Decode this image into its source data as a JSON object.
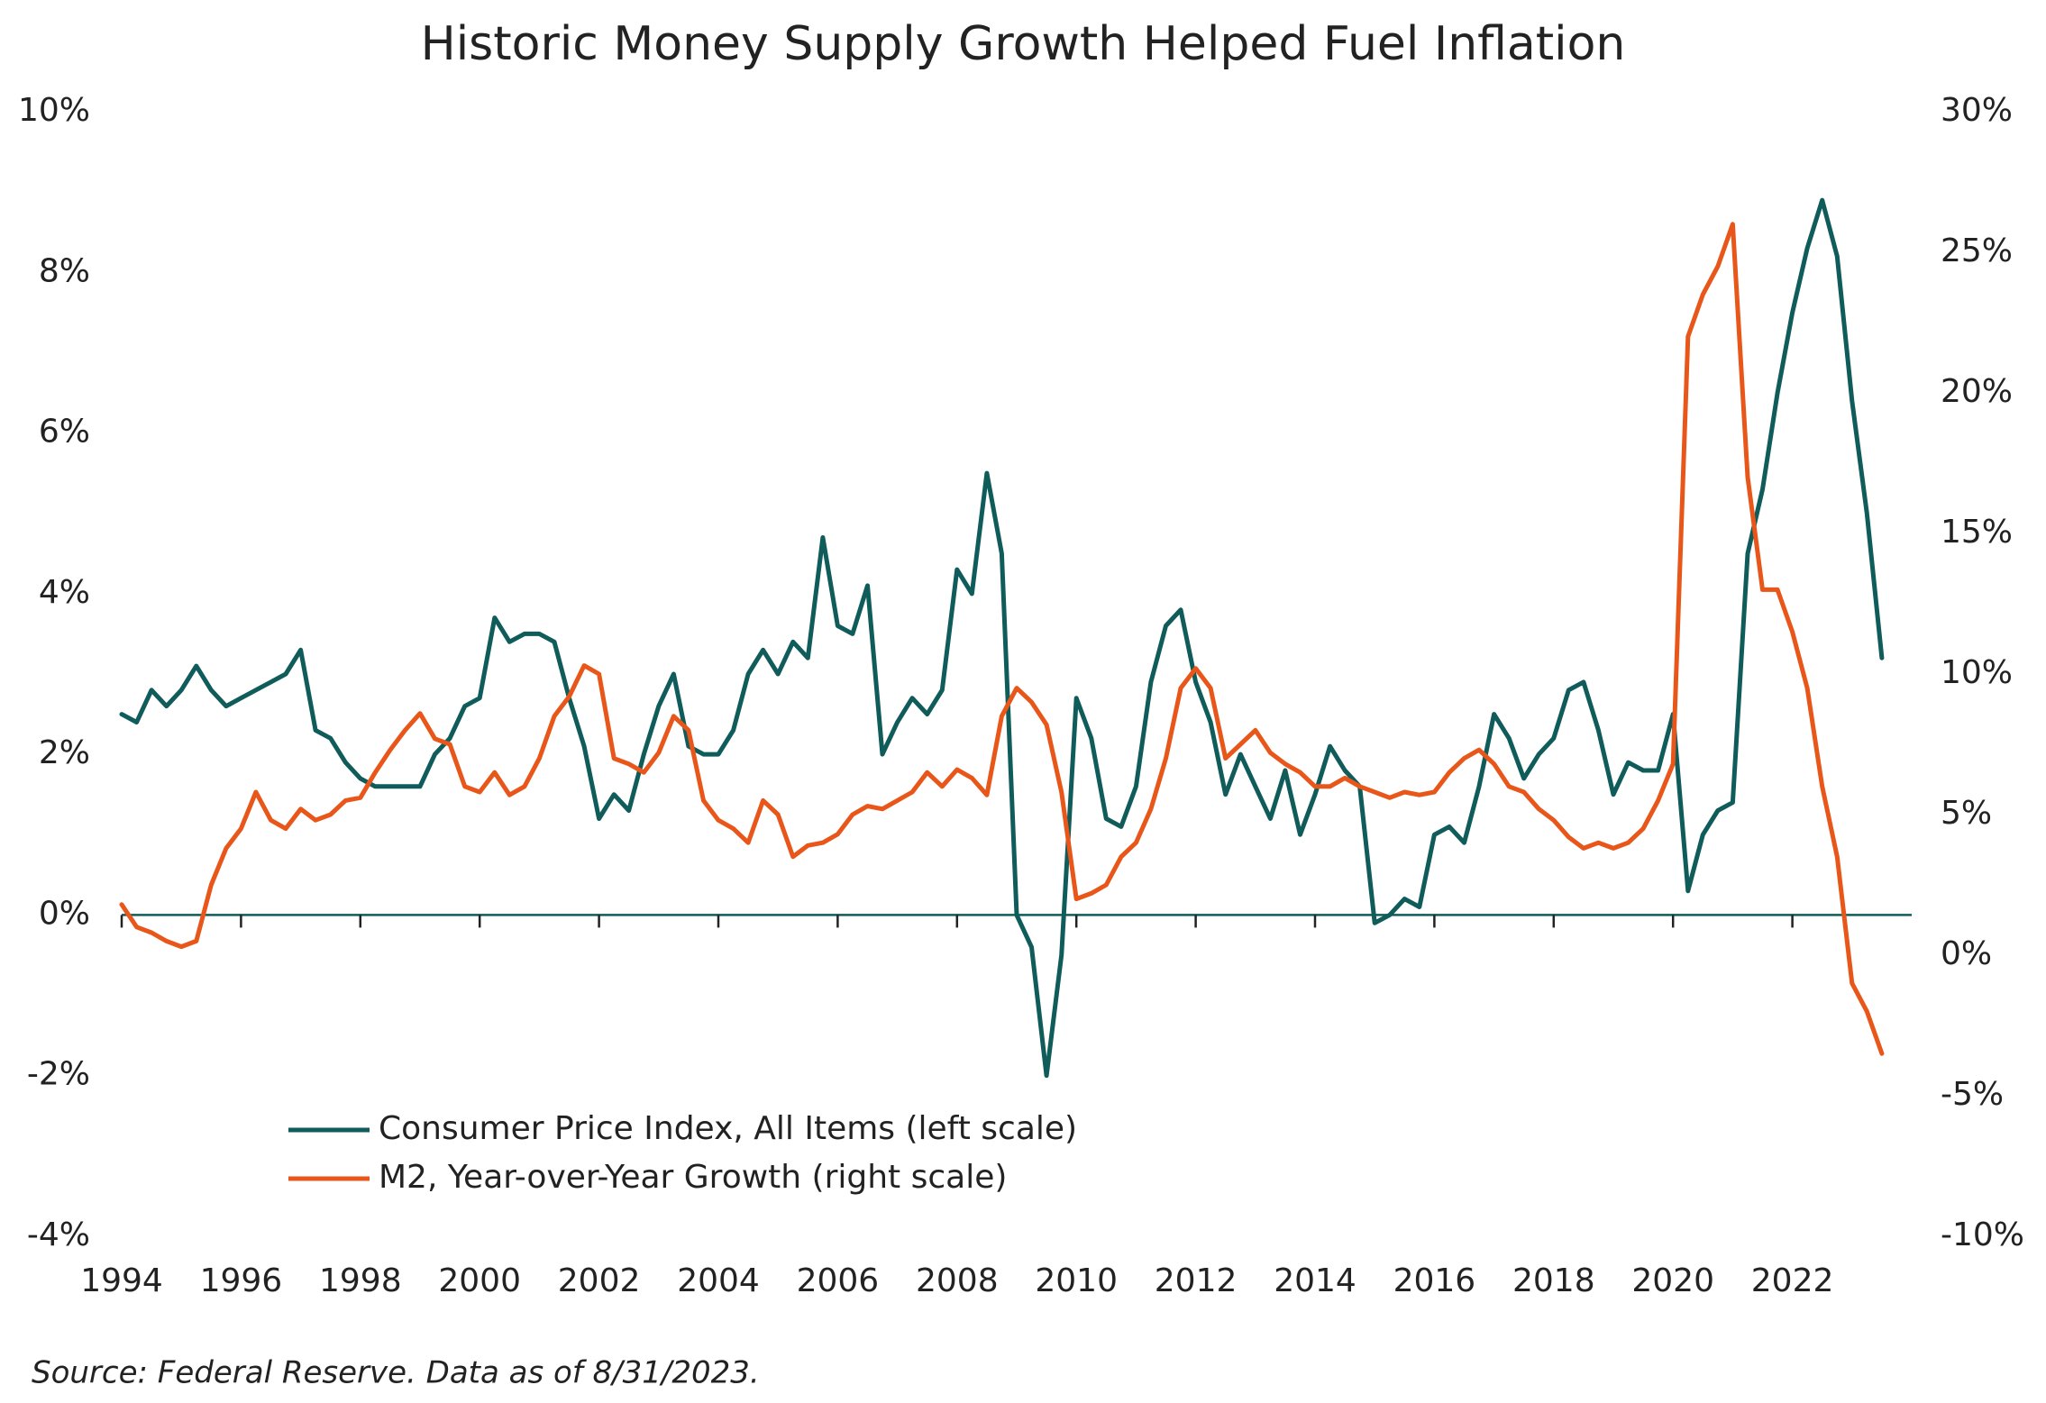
{
  "chart_data": {
    "type": "line",
    "title": "Historic Money Supply Growth Helped Fuel Inflation",
    "source": "Source: Federal Reserve. Data as of 8/31/2023.",
    "legend": "lower left",
    "xlim": [
      1994,
      2024
    ],
    "xticks": [
      1994,
      1996,
      1998,
      2000,
      2002,
      2004,
      2006,
      2008,
      2010,
      2012,
      2014,
      2016,
      2018,
      2020,
      2022
    ],
    "ylim": [
      -4,
      10
    ],
    "yticks": [
      {
        "value": -4,
        "label": "-4%"
      },
      {
        "value": -2,
        "label": "-2%"
      },
      {
        "value": 0,
        "label": "0%"
      },
      {
        "value": 2,
        "label": "2%"
      },
      {
        "value": 4,
        "label": "4%"
      },
      {
        "value": 6,
        "label": "6%"
      },
      {
        "value": 8,
        "label": "8%"
      },
      {
        "value": 10,
        "label": "10%"
      }
    ],
    "y2lim": [
      -10,
      30
    ],
    "y2ticks": [
      {
        "value": -10,
        "label": "-10%"
      },
      {
        "value": -5,
        "label": "-5%"
      },
      {
        "value": 0,
        "label": "0%"
      },
      {
        "value": 5,
        "label": "5%"
      },
      {
        "value": 10,
        "label": "10%"
      },
      {
        "value": 15,
        "label": "15%"
      },
      {
        "value": 20,
        "label": "20%"
      },
      {
        "value": 25,
        "label": "25%"
      },
      {
        "value": 30,
        "label": "30%"
      }
    ],
    "x": [
      1994,
      1994.25,
      1994.5,
      1994.75,
      1995,
      1995.25,
      1995.5,
      1995.75,
      1996,
      1996.25,
      1996.5,
      1996.75,
      1997,
      1997.25,
      1997.5,
      1997.75,
      1998,
      1998.25,
      1998.5,
      1998.75,
      1999,
      1999.25,
      1999.5,
      1999.75,
      2000,
      2000.25,
      2000.5,
      2000.75,
      2001,
      2001.25,
      2001.5,
      2001.75,
      2002,
      2002.25,
      2002.5,
      2002.75,
      2003,
      2003.25,
      2003.5,
      2003.75,
      2004,
      2004.25,
      2004.5,
      2004.75,
      2005,
      2005.25,
      2005.5,
      2005.75,
      2006,
      2006.25,
      2006.5,
      2006.75,
      2007,
      2007.25,
      2007.5,
      2007.75,
      2008,
      2008.25,
      2008.5,
      2008.75,
      2009,
      2009.25,
      2009.5,
      2009.75,
      2010,
      2010.25,
      2010.5,
      2010.75,
      2011,
      2011.25,
      2011.5,
      2011.75,
      2012,
      2012.25,
      2012.5,
      2012.75,
      2013,
      2013.25,
      2013.5,
      2013.75,
      2014,
      2014.25,
      2014.5,
      2014.75,
      2015,
      2015.25,
      2015.5,
      2015.75,
      2016,
      2016.25,
      2016.5,
      2016.75,
      2017,
      2017.25,
      2017.5,
      2017.75,
      2018,
      2018.25,
      2018.5,
      2018.75,
      2019,
      2019.25,
      2019.5,
      2019.75,
      2020,
      2020.25,
      2020.5,
      2020.75,
      2021,
      2021.25,
      2021.5,
      2021.75,
      2022,
      2022.25,
      2022.5,
      2022.75,
      2023,
      2023.25,
      2023.5
    ],
    "series": [
      {
        "name": "Consumer Price Index, All Items (left scale)",
        "color": "#0f5c5a",
        "axis": "y",
        "values": [
          2.5,
          2.4,
          2.8,
          2.6,
          2.8,
          3.1,
          2.8,
          2.6,
          2.7,
          2.8,
          2.9,
          3.0,
          3.3,
          2.3,
          2.2,
          1.9,
          1.7,
          1.6,
          1.6,
          1.6,
          1.6,
          2.0,
          2.2,
          2.6,
          2.7,
          3.7,
          3.4,
          3.5,
          3.5,
          3.4,
          2.7,
          2.1,
          1.2,
          1.5,
          1.3,
          2.0,
          2.6,
          3.0,
          2.1,
          2.0,
          2.0,
          2.3,
          3.0,
          3.3,
          3.0,
          3.4,
          3.2,
          4.7,
          3.6,
          3.5,
          4.1,
          2.0,
          2.4,
          2.7,
          2.5,
          2.8,
          4.3,
          4.0,
          5.5,
          4.5,
          0.0,
          -0.4,
          -2.0,
          -0.5,
          2.7,
          2.2,
          1.2,
          1.1,
          1.6,
          2.9,
          3.6,
          3.8,
          2.9,
          2.4,
          1.5,
          2.0,
          1.6,
          1.2,
          1.8,
          1.0,
          1.5,
          2.1,
          1.8,
          1.6,
          -0.1,
          0.0,
          0.2,
          0.1,
          1.0,
          1.1,
          0.9,
          1.6,
          2.5,
          2.2,
          1.7,
          2.0,
          2.2,
          2.8,
          2.9,
          2.3,
          1.5,
          1.9,
          1.8,
          1.8,
          2.5,
          0.3,
          1.0,
          1.3,
          1.4,
          4.5,
          5.3,
          6.5,
          7.5,
          8.3,
          8.9,
          8.2,
          6.4,
          5.0,
          3.2
        ]
      },
      {
        "name": "M2, Year-over-Year Growth (right scale)",
        "color": "#e8561a",
        "axis": "y2",
        "values": [
          1.8,
          1.0,
          0.8,
          0.5,
          0.3,
          0.5,
          2.5,
          3.8,
          4.5,
          5.8,
          4.8,
          4.5,
          5.2,
          4.8,
          5.0,
          5.5,
          5.6,
          6.5,
          7.3,
          8.0,
          8.6,
          7.7,
          7.5,
          6.0,
          5.8,
          6.5,
          5.7,
          6.0,
          7.0,
          8.5,
          9.2,
          10.3,
          10.0,
          7.0,
          6.8,
          6.5,
          7.2,
          8.5,
          8.0,
          5.5,
          4.8,
          4.5,
          4.0,
          5.5,
          5.0,
          3.5,
          3.9,
          4.0,
          4.3,
          5.0,
          5.3,
          5.2,
          5.5,
          5.8,
          6.5,
          6.0,
          6.6,
          6.3,
          5.7,
          8.5,
          9.5,
          9.0,
          8.2,
          5.8,
          2.0,
          2.2,
          2.5,
          3.5,
          4.0,
          5.2,
          7.0,
          9.5,
          10.2,
          9.5,
          7.0,
          7.5,
          8.0,
          7.2,
          6.8,
          6.5,
          6.0,
          6.0,
          6.3,
          6.0,
          5.8,
          5.6,
          5.8,
          5.7,
          5.8,
          6.5,
          7.0,
          7.3,
          6.8,
          6.0,
          5.8,
          5.2,
          4.8,
          4.2,
          3.8,
          4.0,
          3.8,
          4.0,
          4.5,
          5.5,
          6.8,
          22.0,
          23.5,
          24.5,
          26.0,
          17.0,
          13.0,
          13.0,
          11.5,
          9.5,
          6.0,
          3.5,
          -1.0,
          -2.0,
          -3.5
        ]
      }
    ]
  }
}
